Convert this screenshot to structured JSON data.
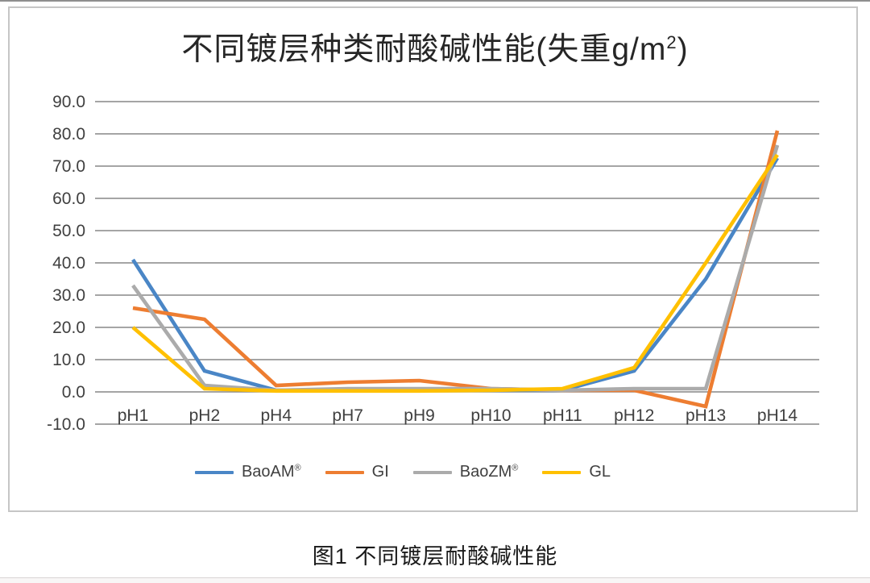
{
  "page": {
    "caption": "图1 不同镀层耐酸碱性能"
  },
  "title": {
    "main": "不同镀层种类耐酸碱性能(失重g/m",
    "sup": "2",
    "close": ")"
  },
  "chart_data": {
    "type": "line",
    "title": "不同镀层种类耐酸碱性能(失重g/m²)",
    "xlabel": "",
    "ylabel": "",
    "categories": [
      "pH1",
      "pH2",
      "pH4",
      "pH7",
      "pH9",
      "pH10",
      "pH11",
      "pH12",
      "pH13",
      "pH14"
    ],
    "series": [
      {
        "name": "BaoAM",
        "mark": "®",
        "color": "#4A86C6",
        "values": [
          41,
          6.5,
          0.5,
          0.5,
          0.5,
          0.5,
          0.5,
          6.5,
          35,
          72.5
        ]
      },
      {
        "name": "GI",
        "mark": "",
        "color": "#ED7D31",
        "values": [
          26,
          22.5,
          2,
          3,
          3.5,
          1,
          0.5,
          0.5,
          -4.5,
          81
        ]
      },
      {
        "name": "BaoZM",
        "mark": "®",
        "color": "#ABABAB",
        "values": [
          33,
          2,
          0.5,
          1,
          1,
          1,
          0.5,
          1,
          1,
          76.5
        ]
      },
      {
        "name": "GL",
        "mark": "",
        "color": "#FFC000",
        "values": [
          20,
          1,
          0.3,
          0.3,
          0.3,
          0.5,
          1,
          7.5,
          40,
          73.5
        ]
      }
    ],
    "y_ticks": [
      "90.0",
      "80.0",
      "70.0",
      "60.0",
      "50.0",
      "40.0",
      "30.0",
      "20.0",
      "10.0",
      "0.0",
      "-10.0"
    ],
    "ylim": [
      -10,
      90
    ],
    "grid": true,
    "legend_position": "bottom",
    "colors": {
      "gridline": "#878787",
      "tick_text": "#404040",
      "title_text": "#262626"
    }
  }
}
